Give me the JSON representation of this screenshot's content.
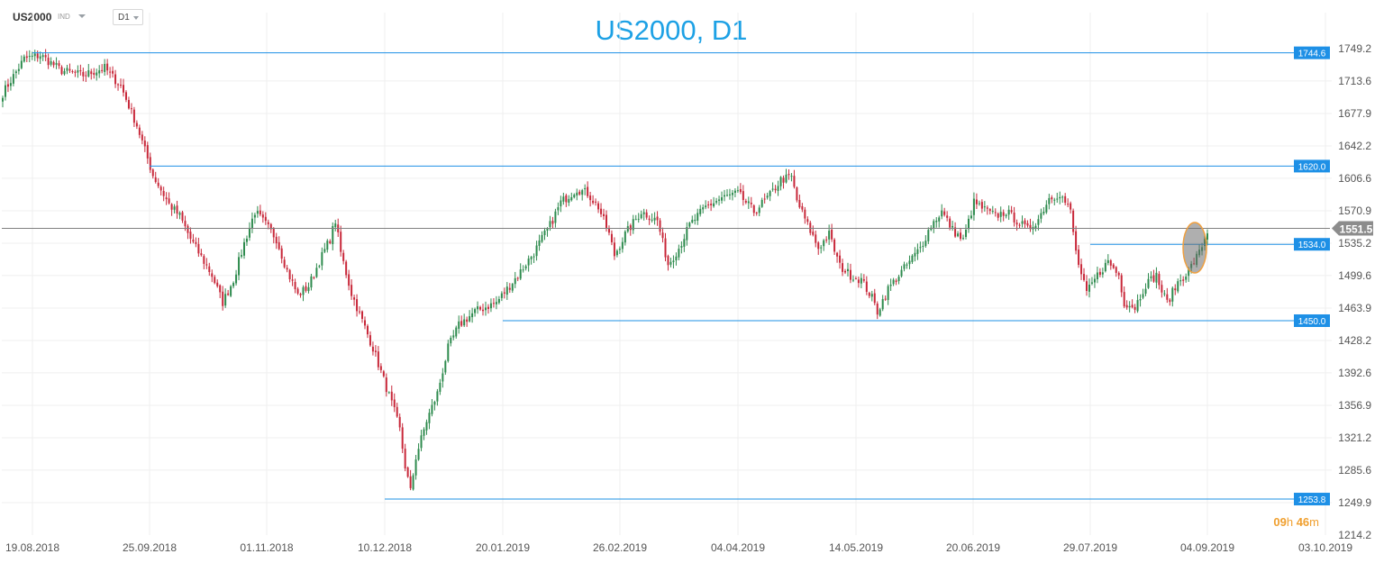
{
  "header": {
    "symbol": "US2000",
    "badge": "IND",
    "timeframe": "D1"
  },
  "chart_data": {
    "type": "candlestick",
    "title": "US2000, D1",
    "y_ticks": [
      "1749.2",
      "1713.6",
      "1677.9",
      "1642.2",
      "1606.6",
      "1570.9",
      "1535.2",
      "1499.6",
      "1463.9",
      "1428.2",
      "1392.6",
      "1356.9",
      "1321.2",
      "1285.6",
      "1249.9",
      "1214.2"
    ],
    "x_ticks": [
      "19.08.2018",
      "25.09.2018",
      "01.11.2018",
      "10.12.2018",
      "20.01.2019",
      "26.02.2019",
      "04.04.2019",
      "14.05.2019",
      "20.06.2019",
      "29.07.2019",
      "04.09.2019",
      "03.10.2019"
    ],
    "ylim": [
      1214.2,
      1749.2
    ],
    "current_price": "1551.5",
    "countdown": {
      "h_value": "09",
      "h_unit": "h",
      "m_value": "46",
      "m_unit": "m"
    },
    "levels": [
      {
        "value": 1744.6,
        "label": "1744.6",
        "start": "19.08.2018"
      },
      {
        "value": 1620.0,
        "label": "1620.0",
        "start": "25.09.2018"
      },
      {
        "value": 1534.0,
        "label": "1534.0",
        "start": "29.07.2019"
      },
      {
        "value": 1450.0,
        "label": "1450.0",
        "start": "20.01.2019"
      },
      {
        "value": 1253.8,
        "label": "1253.8",
        "start": "10.12.2018"
      }
    ],
    "anchors": [
      [
        0,
        1700
      ],
      [
        8,
        1738
      ],
      [
        14,
        1742
      ],
      [
        22,
        1725
      ],
      [
        30,
        1720
      ],
      [
        38,
        1728
      ],
      [
        44,
        1708
      ],
      [
        50,
        1665
      ],
      [
        56,
        1610
      ],
      [
        62,
        1578
      ],
      [
        66,
        1565
      ],
      [
        70,
        1540
      ],
      [
        74,
        1520
      ],
      [
        78,
        1500
      ],
      [
        82,
        1470
      ],
      [
        86,
        1495
      ],
      [
        90,
        1535
      ],
      [
        94,
        1570
      ],
      [
        98,
        1556
      ],
      [
        102,
        1540
      ],
      [
        106,
        1505
      ],
      [
        110,
        1478
      ],
      [
        114,
        1488
      ],
      [
        118,
        1515
      ],
      [
        122,
        1540
      ],
      [
        124,
        1560
      ],
      [
        126,
        1525
      ],
      [
        130,
        1480
      ],
      [
        134,
        1450
      ],
      [
        138,
        1420
      ],
      [
        142,
        1385
      ],
      [
        146,
        1350
      ],
      [
        148,
        1330
      ],
      [
        150,
        1290
      ],
      [
        152,
        1262
      ],
      [
        154,
        1300
      ],
      [
        158,
        1340
      ],
      [
        162,
        1370
      ],
      [
        166,
        1420
      ],
      [
        170,
        1445
      ],
      [
        176,
        1460
      ],
      [
        184,
        1470
      ],
      [
        192,
        1500
      ],
      [
        198,
        1525
      ],
      [
        204,
        1555
      ],
      [
        208,
        1580
      ],
      [
        214,
        1595
      ],
      [
        218,
        1590
      ],
      [
        222,
        1575
      ],
      [
        226,
        1545
      ],
      [
        228,
        1522
      ],
      [
        232,
        1545
      ],
      [
        238,
        1570
      ],
      [
        244,
        1560
      ],
      [
        248,
        1512
      ],
      [
        252,
        1530
      ],
      [
        256,
        1555
      ],
      [
        262,
        1575
      ],
      [
        268,
        1585
      ],
      [
        274,
        1590
      ],
      [
        280,
        1570
      ],
      [
        286,
        1588
      ],
      [
        290,
        1605
      ],
      [
        294,
        1608
      ],
      [
        296,
        1582
      ],
      [
        300,
        1555
      ],
      [
        304,
        1530
      ],
      [
        308,
        1545
      ],
      [
        312,
        1510
      ],
      [
        316,
        1500
      ],
      [
        320,
        1495
      ],
      [
        324,
        1475
      ],
      [
        326,
        1460
      ],
      [
        330,
        1485
      ],
      [
        334,
        1500
      ],
      [
        338,
        1515
      ],
      [
        342,
        1530
      ],
      [
        346,
        1555
      ],
      [
        350,
        1570
      ],
      [
        354,
        1550
      ],
      [
        358,
        1538
      ],
      [
        362,
        1580
      ],
      [
        366,
        1572
      ],
      [
        370,
        1565
      ],
      [
        374,
        1570
      ],
      [
        378,
        1560
      ],
      [
        382,
        1550
      ],
      [
        386,
        1562
      ],
      [
        390,
        1585
      ],
      [
        394,
        1590
      ],
      [
        398,
        1570
      ],
      [
        400,
        1525
      ],
      [
        402,
        1500
      ],
      [
        404,
        1480
      ],
      [
        408,
        1500
      ],
      [
        412,
        1515
      ],
      [
        416,
        1500
      ],
      [
        418,
        1470
      ],
      [
        422,
        1465
      ],
      [
        426,
        1490
      ],
      [
        430,
        1500
      ],
      [
        432,
        1482
      ],
      [
        434,
        1470
      ],
      [
        438,
        1492
      ],
      [
        442,
        1505
      ],
      [
        446,
        1525
      ],
      [
        449,
        1548
      ]
    ]
  }
}
